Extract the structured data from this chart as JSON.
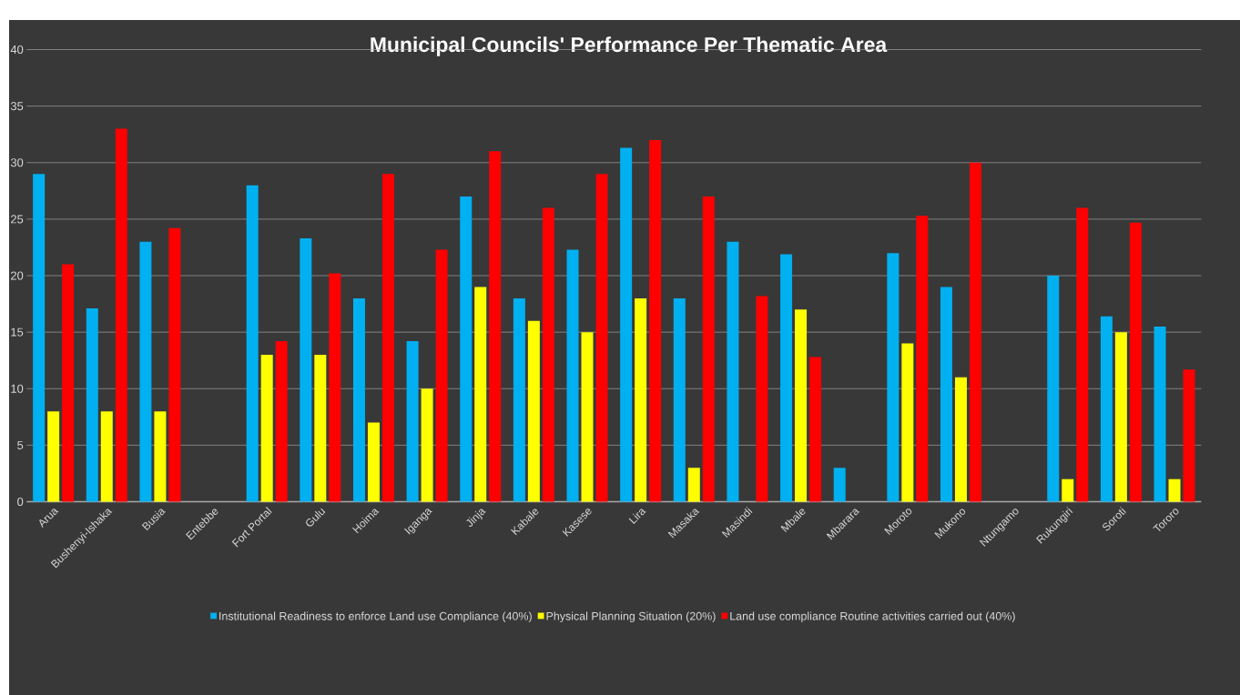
{
  "chart_data": {
    "type": "bar",
    "title": "Municipal Councils' Performance Per Thematic Area",
    "categories": [
      "Arua",
      "Bushenyi-Ishaka",
      "Busia",
      "Entebbe",
      "Fort Portal",
      "Gulu",
      "Hoima",
      "Iganga",
      "Jinja",
      "Kabale",
      "Kasese",
      "Lira",
      "Masaka",
      "Masindi",
      "Mbale",
      "Mbarara",
      "Moroto",
      "Mukono",
      "Ntungamo",
      "Rukungiri",
      "Soroti",
      "Tororo"
    ],
    "series": [
      {
        "name": "Institutional Readiness to enforce Land use Compliance (40%)",
        "color": "#00b0f0",
        "values": [
          29,
          17.1,
          23,
          null,
          28,
          23.3,
          18,
          14.2,
          27,
          18,
          22.3,
          31.3,
          18,
          23,
          21.9,
          3,
          22,
          19,
          null,
          20,
          16.4,
          15.5
        ]
      },
      {
        "name": "Physical Planning Situation (20%)",
        "color": "#ffff00",
        "values": [
          8,
          8,
          8,
          null,
          13,
          13,
          7,
          10,
          19,
          16,
          15,
          18,
          3,
          null,
          17,
          null,
          14,
          11,
          null,
          2,
          15,
          2
        ]
      },
      {
        "name": "Land use compliance Routine activities carried out (40%)",
        "color": "#ff0000",
        "values": [
          21,
          33,
          24.2,
          null,
          14.2,
          20.2,
          29,
          22.3,
          31,
          26,
          29,
          32,
          27,
          18.2,
          12.8,
          null,
          25.3,
          30,
          null,
          26,
          24.7,
          11.7
        ]
      }
    ],
    "ylim": [
      0,
      40
    ],
    "yticks": [
      0,
      5,
      10,
      15,
      20,
      25,
      30,
      35,
      40
    ],
    "grid": "y",
    "legend": "bottom"
  }
}
